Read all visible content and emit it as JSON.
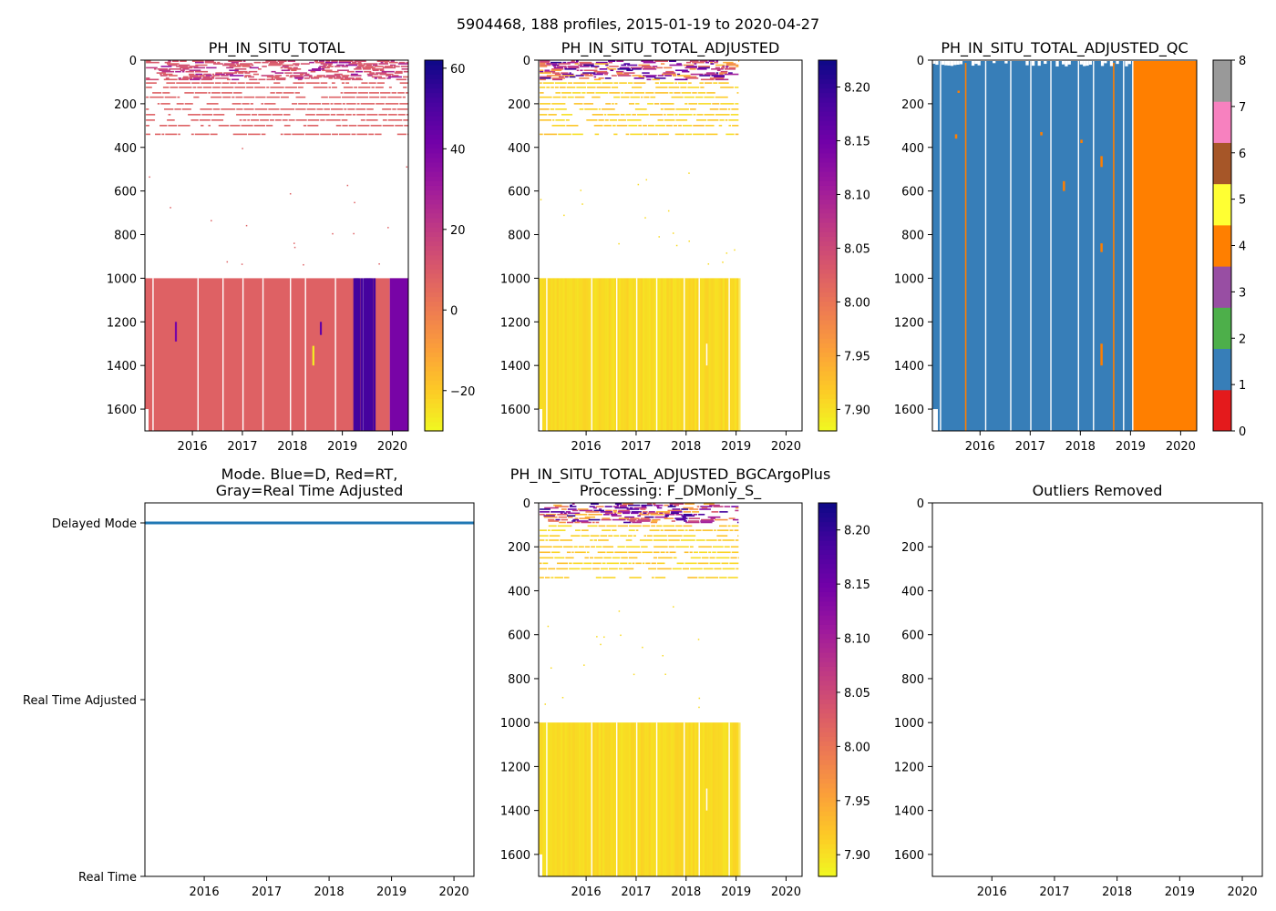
{
  "suptitle": "5904468, 188 profiles, 2015-01-19 to 2020-04-27",
  "colors": {
    "plasma_r": [
      "#f0f921",
      "#fdca26",
      "#fb9f3a",
      "#ed7953",
      "#d8576b",
      "#bd3786",
      "#9c179e",
      "#7201a8",
      "#46039f",
      "#0d0887"
    ],
    "qc": [
      "#e41a1c",
      "#377eb8",
      "#4daf4a",
      "#984ea3",
      "#ff7f00",
      "#ffff33",
      "#a65628",
      "#f781bf",
      "#999999"
    ],
    "pH_total_fill": "#dc5c67",
    "pH_adj_fill": "#f6e12c",
    "mode_line": "#1f77b4",
    "qc_main": "#377eb8",
    "qc_late": "#ff7f00"
  },
  "chart_data": [
    {
      "id": "ph-in-situ-total",
      "type": "heatmap",
      "title": "PH_IN_SITU_TOTAL",
      "xlim": [
        2015.05,
        2020.32
      ],
      "xticks": [
        "2016",
        "2017",
        "2018",
        "2019",
        "2020"
      ],
      "ylim": [
        1700,
        0
      ],
      "yticks": [
        "0",
        "200",
        "400",
        "600",
        "800",
        "1000",
        "1200",
        "1400",
        "1600"
      ],
      "colorbar": {
        "cmap": "plasma_r",
        "range": [
          -30,
          62
        ],
        "ticks": [
          "60",
          "40",
          "20",
          "0",
          "−20"
        ],
        "tick_values": [
          60,
          40,
          20,
          0,
          -20
        ]
      },
      "fill_value": 8.0,
      "dense_depth_start": 1000,
      "shallow_depth_end": 350,
      "profile_gaps": [
        2015.2,
        2016.1,
        2016.6,
        2017.0,
        2017.4,
        2017.95,
        2018.25,
        2018.85,
        2019.4,
        2019.95
      ],
      "anomalies": [
        {
          "t0": 2019.25,
          "t1": 2019.33,
          "d0": 1000,
          "d1": 1700,
          "value": 55
        },
        {
          "t0": 2019.45,
          "t1": 2019.58,
          "d0": 1000,
          "d1": 1700,
          "value": 50
        },
        {
          "t0": 2019.95,
          "t1": 2020.32,
          "d0": 1000,
          "d1": 1700,
          "value": 40
        },
        {
          "t0": 2015.65,
          "t1": 2015.69,
          "d0": 1200,
          "d1": 1290,
          "value": 40
        },
        {
          "t0": 2018.4,
          "t1": 2018.44,
          "d0": 1310,
          "d1": 1400,
          "value": -28
        },
        {
          "t0": 2018.55,
          "t1": 2018.59,
          "d0": 1200,
          "d1": 1260,
          "value": 45
        }
      ]
    },
    {
      "id": "ph-in-situ-total-adjusted",
      "type": "heatmap",
      "title": "PH_IN_SITU_TOTAL_ADJUSTED",
      "xlim": [
        2015.05,
        2020.32
      ],
      "xticks": [
        "2016",
        "2017",
        "2018",
        "2019",
        "2020"
      ],
      "ylim": [
        1700,
        0
      ],
      "yticks": [
        "0",
        "200",
        "400",
        "600",
        "800",
        "1000",
        "1200",
        "1400",
        "1600"
      ],
      "colorbar": {
        "cmap": "plasma_r",
        "range": [
          7.88,
          8.225
        ],
        "ticks": [
          "8.20",
          "8.15",
          "8.10",
          "8.05",
          "8.00",
          "7.95",
          "7.90"
        ],
        "tick_values": [
          8.2,
          8.15,
          8.1,
          8.05,
          8.0,
          7.95,
          7.9
        ]
      },
      "fill_value": 7.905,
      "data_end": 2019.05,
      "dense_depth_start": 1000,
      "shallow_depth_end": 350,
      "profile_gaps": [
        2015.2,
        2016.1,
        2016.6,
        2017.0,
        2017.4,
        2017.95,
        2018.25,
        2018.85
      ]
    },
    {
      "id": "ph-in-situ-total-adjusted-qc",
      "type": "heatmap",
      "title": "PH_IN_SITU_TOTAL_ADJUSTED_QC",
      "xlim": [
        2015.05,
        2020.32
      ],
      "xticks": [
        "2016",
        "2017",
        "2018",
        "2019",
        "2020"
      ],
      "ylim": [
        1700,
        0
      ],
      "yticks": [
        "0",
        "200",
        "400",
        "600",
        "800",
        "1000",
        "1200",
        "1400",
        "1600"
      ],
      "colorbar": {
        "cmap": "qc",
        "range": [
          0,
          8
        ],
        "ticks": [
          "8",
          "7",
          "6",
          "5",
          "4",
          "3",
          "2",
          "1",
          "0"
        ],
        "tick_values": [
          8,
          7,
          6,
          5,
          4,
          3,
          2,
          1,
          0
        ]
      },
      "main_flag": 1,
      "late_flag": 4,
      "late_start": 2019.05,
      "profile_gaps": [
        2015.2,
        2016.1,
        2016.6,
        2017.0,
        2017.4,
        2017.95,
        2018.25,
        2018.85
      ],
      "flag4_lines": [
        2015.7,
        2018.65
      ],
      "flag4_spots": [
        {
          "t": 2015.5,
          "d0": 340,
          "d1": 360
        },
        {
          "t": 2015.55,
          "d0": 140,
          "d1": 150
        },
        {
          "t": 2017.65,
          "d0": 555,
          "d1": 600
        },
        {
          "t": 2018.4,
          "d0": 440,
          "d1": 490
        },
        {
          "t": 2018.4,
          "d0": 840,
          "d1": 880
        },
        {
          "t": 2018.4,
          "d0": 1300,
          "d1": 1400
        },
        {
          "t": 2017.2,
          "d0": 330,
          "d1": 345
        },
        {
          "t": 2018.0,
          "d0": 365,
          "d1": 380
        }
      ]
    },
    {
      "id": "data-mode",
      "type": "line",
      "title_lines": [
        "Mode. Blue=D, Red=RT,",
        "Gray=Real Time Adjusted"
      ],
      "xlim": [
        2015.05,
        2020.32
      ],
      "xticks": [
        "2016",
        "2017",
        "2018",
        "2019",
        "2020"
      ],
      "categories": [
        "Delayed Mode",
        "Real Time Adjusted",
        "Real Time"
      ],
      "x": [
        2015.05,
        2020.32
      ],
      "series": [
        {
          "name": "Delayed Mode",
          "value": "Delayed Mode"
        }
      ]
    },
    {
      "id": "ph-bgcargoplus",
      "type": "heatmap",
      "title_lines": [
        "PH_IN_SITU_TOTAL_ADJUSTED_BGCArgoPlus",
        "Processing: F_DMonly_S_"
      ],
      "xlim": [
        2015.05,
        2020.32
      ],
      "xticks": [
        "2016",
        "2017",
        "2018",
        "2019",
        "2020"
      ],
      "ylim": [
        1700,
        0
      ],
      "yticks": [
        "0",
        "200",
        "400",
        "600",
        "800",
        "1000",
        "1200",
        "1400",
        "1600"
      ],
      "colorbar": {
        "cmap": "plasma_r",
        "range": [
          7.88,
          8.225
        ],
        "ticks": [
          "8.20",
          "8.15",
          "8.10",
          "8.05",
          "8.00",
          "7.95",
          "7.90"
        ],
        "tick_values": [
          8.2,
          8.15,
          8.1,
          8.05,
          8.0,
          7.95,
          7.9
        ]
      },
      "fill_value": 7.905,
      "data_end": 2019.05,
      "dense_depth_start": 1000,
      "shallow_depth_end": 350,
      "profile_gaps": [
        2015.2,
        2016.1,
        2016.6,
        2017.0,
        2017.4,
        2017.95,
        2018.25,
        2018.85
      ]
    },
    {
      "id": "outliers-removed",
      "type": "scatter",
      "title": "Outliers Removed",
      "xlim": [
        2015.05,
        2020.32
      ],
      "xticks": [
        "2016",
        "2017",
        "2018",
        "2019",
        "2020"
      ],
      "ylim": [
        1700,
        0
      ],
      "yticks": [
        "0",
        "200",
        "400",
        "600",
        "800",
        "1000",
        "1200",
        "1400",
        "1600"
      ],
      "points": []
    }
  ]
}
